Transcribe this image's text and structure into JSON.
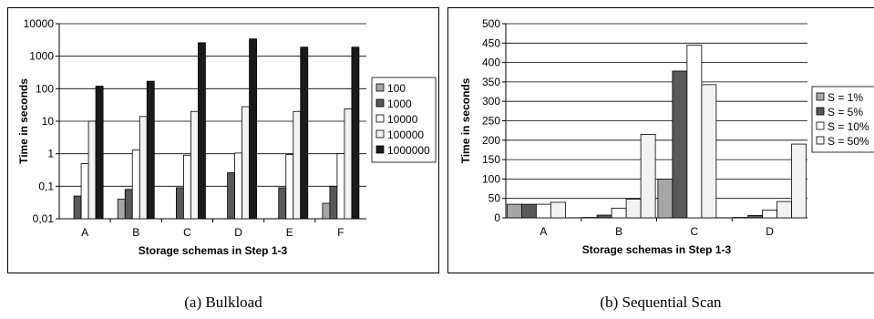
{
  "chart_data": [
    {
      "type": "bar",
      "scale": "log",
      "caption": "(a) Bulkload",
      "xlabel": "Storage schemas in Step 1-3",
      "ylabel": "Time in seconds",
      "ylim": [
        0.01,
        10000
      ],
      "yticks": [
        "0,01",
        "0,1",
        "1",
        "10",
        "100",
        "1000",
        "10000"
      ],
      "categories": [
        "A",
        "B",
        "C",
        "D",
        "E",
        "F"
      ],
      "grid": true,
      "legend_position": "right",
      "series": [
        {
          "name": "100",
          "color": "#a6a6a6",
          "values": [
            null,
            0.04,
            null,
            null,
            null,
            0.03
          ]
        },
        {
          "name": "1000",
          "color": "#595959",
          "values": [
            0.05,
            0.08,
            0.09,
            0.26,
            0.09,
            0.1
          ]
        },
        {
          "name": "10000",
          "color": "#ffffff",
          "values": [
            0.5,
            1.3,
            0.9,
            1.05,
            0.95,
            1.0
          ]
        },
        {
          "name": "100000",
          "color": "#f2f2f2",
          "values": [
            10,
            14,
            20,
            28,
            20,
            24
          ]
        },
        {
          "name": "1000000",
          "color": "#1a1a1a",
          "values": [
            120,
            170,
            2600,
            3400,
            1900,
            1900
          ]
        }
      ]
    },
    {
      "type": "bar",
      "scale": "linear",
      "caption": "(b) Sequential Scan",
      "xlabel": "Storage schemas in Step 1-3",
      "ylabel": "Time in seconds",
      "ylim": [
        0,
        500
      ],
      "yticks": [
        "0",
        "50",
        "100",
        "150",
        "200",
        "250",
        "300",
        "350",
        "400",
        "450",
        "500"
      ],
      "categories": [
        "A",
        "B",
        "C",
        "D"
      ],
      "grid": true,
      "legend_position": "right",
      "series": [
        {
          "name": "S = 1%",
          "color": "#a6a6a6",
          "values": [
            35,
            1,
            100,
            1
          ]
        },
        {
          "name": "S = 5%",
          "color": "#595959",
          "values": [
            35,
            7,
            378,
            6
          ]
        },
        {
          "name": "S = 10%",
          "color": "#ffffff",
          "values": [
            35,
            25,
            445,
            20
          ]
        },
        {
          "name": "S = 50%",
          "color": "#f2f2f2",
          "values": [
            40,
            48,
            343,
            42
          ]
        }
      ],
      "extra_series_note": "",
      "series_fifth": {
        "name": "",
        "values": [
          null,
          215,
          null,
          190
        ]
      }
    }
  ]
}
